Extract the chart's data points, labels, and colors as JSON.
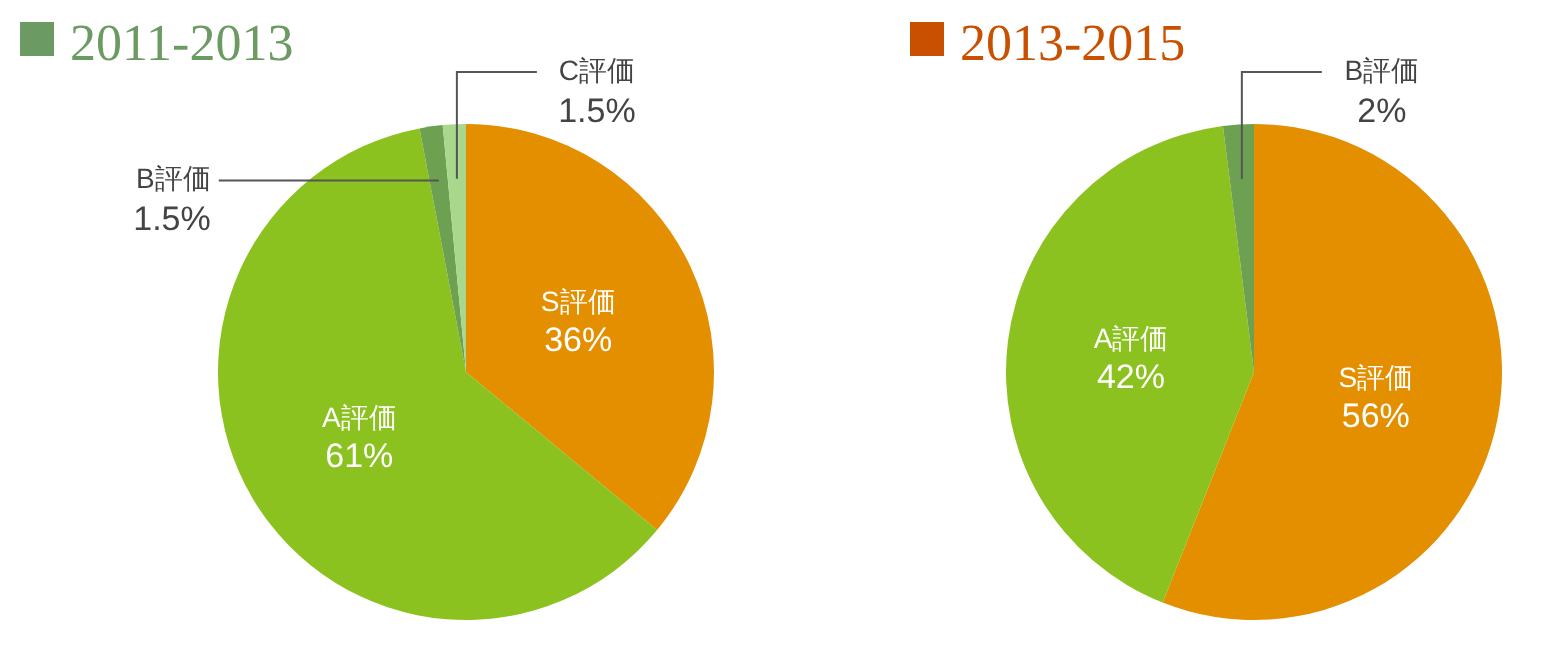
{
  "chart_data": [
    {
      "type": "pie",
      "title": "2011-2013",
      "categories": [
        "S評価",
        "A評価",
        "B評価",
        "C評価"
      ],
      "values": [
        36,
        61,
        1.5,
        1.5
      ],
      "value_labels": [
        "36%",
        "61%",
        "1.5%",
        "1.5%"
      ],
      "colors": [
        "#e38f00",
        "#8cc21f",
        "#6ea052",
        "#a9d88c"
      ]
    },
    {
      "type": "pie",
      "title": "2013-2015",
      "categories": [
        "S評価",
        "A評価",
        "B評価"
      ],
      "values": [
        56,
        42,
        2
      ],
      "value_labels": [
        "56%",
        "42%",
        "2%"
      ],
      "colors": [
        "#e38f00",
        "#8cc21f",
        "#6ea052"
      ]
    }
  ]
}
